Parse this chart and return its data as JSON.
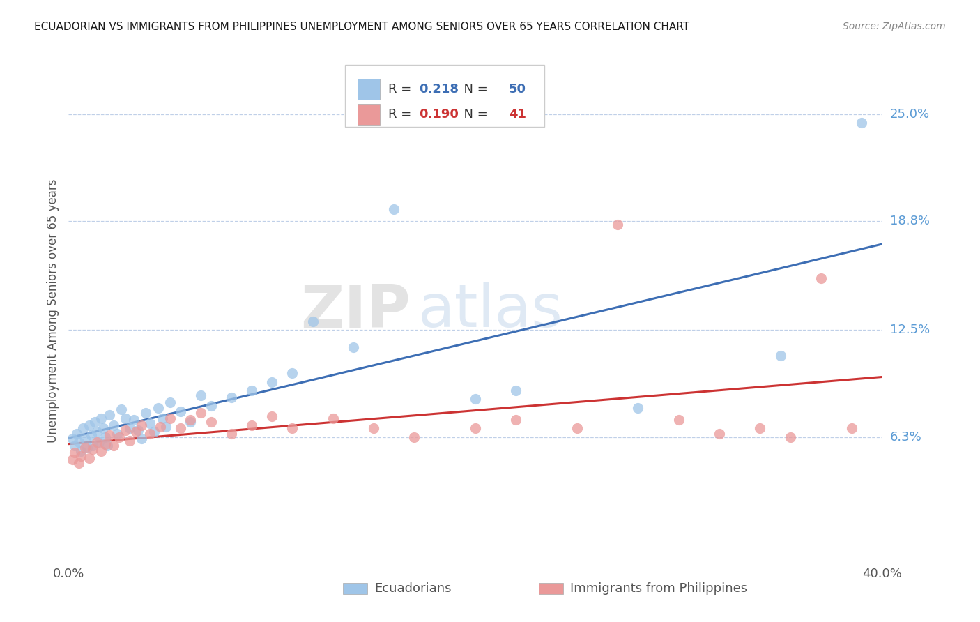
{
  "title": "ECUADORIAN VS IMMIGRANTS FROM PHILIPPINES UNEMPLOYMENT AMONG SENIORS OVER 65 YEARS CORRELATION CHART",
  "source": "Source: ZipAtlas.com",
  "ylabel": "Unemployment Among Seniors over 65 years",
  "legend_label1": "Ecuadorians",
  "legend_label2": "Immigrants from Philippines",
  "R1": "0.218",
  "N1": "50",
  "R2": "0.190",
  "N2": "41",
  "color1": "#9fc5e8",
  "color2": "#ea9999",
  "trendline_color1": "#3d6eb4",
  "trendline_color2": "#cc3333",
  "watermark_zip": "ZIP",
  "watermark_atlas": "atlas",
  "xlim": [
    0.0,
    0.4
  ],
  "ylim": [
    -0.008,
    0.28
  ],
  "ytick_values": [
    0.063,
    0.125,
    0.188,
    0.25
  ],
  "ytick_labels": [
    "6.3%",
    "12.5%",
    "18.8%",
    "25.0%"
  ],
  "blue_x": [
    0.002,
    0.003,
    0.004,
    0.005,
    0.006,
    0.007,
    0.008,
    0.009,
    0.01,
    0.011,
    0.012,
    0.013,
    0.014,
    0.015,
    0.016,
    0.017,
    0.018,
    0.019,
    0.02,
    0.022,
    0.024,
    0.026,
    0.028,
    0.03,
    0.032,
    0.034,
    0.036,
    0.038,
    0.04,
    0.042,
    0.044,
    0.046,
    0.048,
    0.05,
    0.055,
    0.06,
    0.065,
    0.07,
    0.08,
    0.09,
    0.1,
    0.11,
    0.12,
    0.14,
    0.16,
    0.2,
    0.22,
    0.28,
    0.35,
    0.39
  ],
  "blue_y": [
    0.062,
    0.058,
    0.065,
    0.06,
    0.055,
    0.068,
    0.062,
    0.057,
    0.07,
    0.064,
    0.058,
    0.072,
    0.066,
    0.06,
    0.074,
    0.068,
    0.063,
    0.058,
    0.076,
    0.07,
    0.065,
    0.079,
    0.074,
    0.068,
    0.073,
    0.067,
    0.062,
    0.077,
    0.071,
    0.066,
    0.08,
    0.074,
    0.069,
    0.083,
    0.078,
    0.072,
    0.087,
    0.081,
    0.086,
    0.09,
    0.095,
    0.1,
    0.13,
    0.115,
    0.195,
    0.085,
    0.09,
    0.08,
    0.11,
    0.245
  ],
  "pink_x": [
    0.002,
    0.003,
    0.005,
    0.006,
    0.008,
    0.01,
    0.012,
    0.014,
    0.016,
    0.018,
    0.02,
    0.022,
    0.025,
    0.028,
    0.03,
    0.033,
    0.036,
    0.04,
    0.045,
    0.05,
    0.055,
    0.06,
    0.065,
    0.07,
    0.08,
    0.09,
    0.1,
    0.11,
    0.13,
    0.15,
    0.17,
    0.2,
    0.22,
    0.25,
    0.27,
    0.3,
    0.32,
    0.34,
    0.355,
    0.37,
    0.385
  ],
  "pink_y": [
    0.05,
    0.054,
    0.048,
    0.052,
    0.057,
    0.051,
    0.056,
    0.06,
    0.055,
    0.059,
    0.064,
    0.058,
    0.063,
    0.067,
    0.061,
    0.066,
    0.07,
    0.065,
    0.069,
    0.074,
    0.068,
    0.073,
    0.077,
    0.072,
    0.065,
    0.07,
    0.075,
    0.068,
    0.074,
    0.068,
    0.063,
    0.068,
    0.073,
    0.068,
    0.186,
    0.073,
    0.065,
    0.068,
    0.063,
    0.155,
    0.068
  ]
}
